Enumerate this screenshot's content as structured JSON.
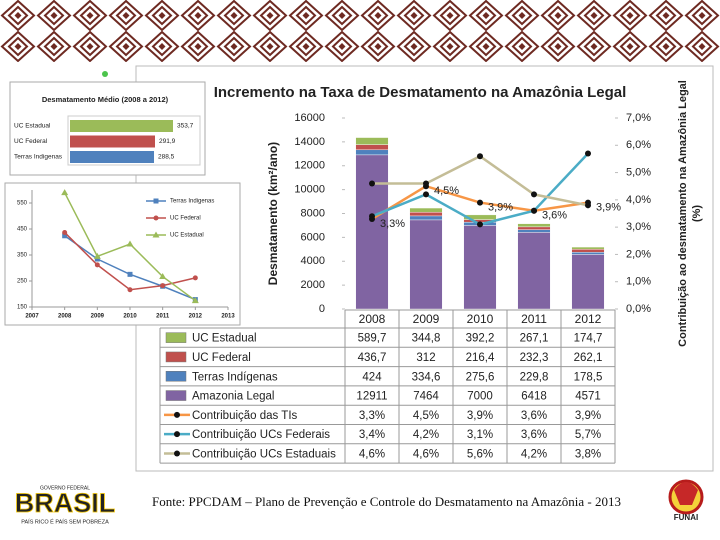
{
  "chart_data": [
    {
      "type": "bar",
      "orientation": "horizontal",
      "title": "Desmatamento Médio (2008 a 2012)",
      "categories": [
        "UC Estadual",
        "UC Federal",
        "Terras Indigenas"
      ],
      "values": [
        353.7,
        291.9,
        288.5
      ],
      "value_labels": [
        "353,7",
        "291,9",
        "288,5"
      ],
      "colors": [
        "#9bbb59",
        "#c0504d",
        "#4f81bd"
      ]
    },
    {
      "type": "line",
      "x": [
        2008,
        2009,
        2010,
        2011,
        2012
      ],
      "xlim": [
        2007,
        2013
      ],
      "xticks": [
        2007,
        2008,
        2009,
        2010,
        2011,
        2012,
        2013
      ],
      "ylim": [
        150,
        600
      ],
      "yticks": [
        150,
        250,
        350,
        450,
        550
      ],
      "series": [
        {
          "name": "Terras Indigenas",
          "color": "#4f81bd",
          "marker": "square",
          "values": [
            424,
            334.6,
            275.6,
            229.8,
            178.5
          ]
        },
        {
          "name": "UC Federal",
          "color": "#c0504d",
          "marker": "circle",
          "values": [
            436.7,
            312,
            216.4,
            232.3,
            262.1
          ]
        },
        {
          "name": "UC Estadual",
          "color": "#9bbb59",
          "marker": "triangle",
          "values": [
            589.7,
            344.8,
            392.2,
            267.1,
            174.7
          ]
        }
      ]
    },
    {
      "type": "combo",
      "title": "Incremento na Taxa de Desmatamento na Amazônia Legal",
      "ylabel": "Desmatamento (km²/ano)",
      "y2label": [
        "Contribuição ao desmatamento na Amazônia Legal",
        "(%)"
      ],
      "categories": [
        "2008",
        "2009",
        "2010",
        "2011",
        "2012"
      ],
      "ylim": [
        0,
        16000
      ],
      "yticks": [
        0,
        2000,
        4000,
        6000,
        8000,
        10000,
        12000,
        14000,
        16000
      ],
      "y2lim": [
        0,
        7
      ],
      "y2ticks": [
        {
          "value": 0,
          "label": "0,0%"
        },
        {
          "value": 1,
          "label": "1,0%"
        },
        {
          "value": 2,
          "label": "2,0%"
        },
        {
          "value": 3,
          "label": "3,0%"
        },
        {
          "value": 4,
          "label": "4,0%"
        },
        {
          "value": 5,
          "label": "5,0%"
        },
        {
          "value": 6,
          "label": "6,0%"
        },
        {
          "value": 7,
          "label": "7,0%"
        }
      ],
      "data_table": true,
      "series": [
        {
          "name": "UC Estadual",
          "kind": "bar",
          "color": "#9bbb59",
          "values": [
            589.7,
            344.8,
            392.2,
            267.1,
            174.7
          ],
          "value_labels": [
            "589,7",
            "344,8",
            "392,2",
            "267,1",
            "174,7"
          ]
        },
        {
          "name": "UC Federal",
          "kind": "bar",
          "color": "#c0504d",
          "values": [
            436.7,
            312,
            216.4,
            232.3,
            262.1
          ],
          "value_labels": [
            "436,7",
            "312",
            "216,4",
            "232,3",
            "262,1"
          ]
        },
        {
          "name": "Terras Indígenas",
          "kind": "bar",
          "color": "#4f81bd",
          "values": [
            424,
            334.6,
            275.6,
            229.8,
            178.5
          ],
          "value_labels": [
            "424",
            "334,6",
            "275,6",
            "229,8",
            "178,5"
          ]
        },
        {
          "name": "Amazonia Legal",
          "kind": "bar",
          "color": "#8064a2",
          "values": [
            12911,
            7464,
            7000,
            6418,
            4571
          ]
        },
        {
          "name": "Contribuição das TIs",
          "kind": "line",
          "axis": "y2",
          "color": "#f79646",
          "data_labels": true,
          "values": [
            3.3,
            4.5,
            3.9,
            3.6,
            3.9
          ],
          "value_labels": [
            "3,3%",
            "4,5%",
            "3,9%",
            "3,6%",
            "3,9%"
          ]
        },
        {
          "name": "Contribuição UCs Federais",
          "kind": "line",
          "axis": "y2",
          "color": "#4bacc6",
          "values": [
            3.4,
            4.2,
            3.1,
            3.6,
            5.7
          ],
          "value_labels": [
            "3,4%",
            "4,2%",
            "3,1%",
            "3,6%",
            "5,7%"
          ]
        },
        {
          "name": "Contribuição UCs Estaduais",
          "kind": "line",
          "axis": "y2",
          "color": "#c4bd97",
          "values": [
            4.6,
            4.6,
            5.6,
            4.2,
            3.8
          ],
          "value_labels": [
            "4,6%",
            "4,6%",
            "5,6%",
            "4,2%",
            "3,8%"
          ]
        }
      ]
    }
  ],
  "footer": {
    "source": "Fonte: PPCDAM – Plano de Prevenção e Controle do Desmatamento na Amazônia - 2013",
    "logo": {
      "top": "GOVERNO FEDERAL",
      "name": "BRASIL",
      "slogan": "PAÍS RICO É PAÍS SEM POBREZA"
    },
    "emblem": "FUNAI"
  }
}
